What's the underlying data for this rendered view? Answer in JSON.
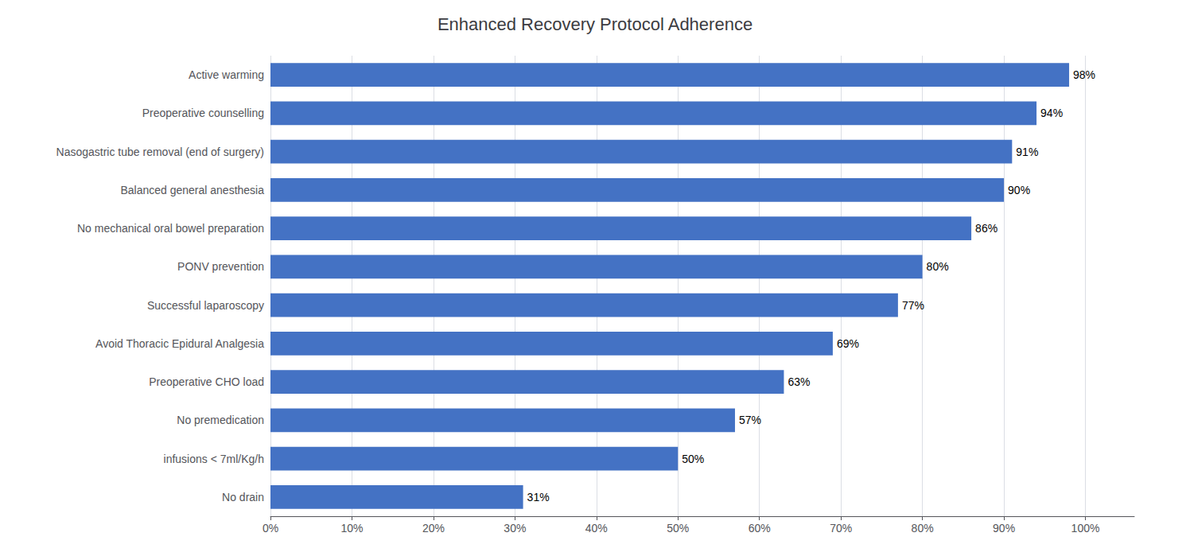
{
  "chart_data": {
    "type": "bar",
    "orientation": "horizontal",
    "title": "Enhanced Recovery Protocol Adherence",
    "categories": [
      "No drain",
      "infusions < 7ml/Kg/h",
      "No premedication",
      "Preoperative CHO load",
      "Avoid Thoracic Epidural Analgesia",
      "Successful laparoscopy",
      "PONV prevention",
      "No mechanical oral bowel preparation",
      "Balanced general anesthesia",
      "Nasogastric tube removal (end of surgery)",
      "Preoperative counselling",
      "Active warming"
    ],
    "values": [
      31,
      50,
      57,
      63,
      69,
      77,
      80,
      86,
      90,
      91,
      94,
      98
    ],
    "value_labels": [
      "31%",
      "50%",
      "57%",
      "63%",
      "69%",
      "77%",
      "80%",
      "86%",
      "90%",
      "91%",
      "94%",
      "98%"
    ],
    "color": "#4472C4",
    "xlim": [
      0,
      106
    ],
    "xticks": [
      {
        "value": 0,
        "label": "0%"
      },
      {
        "value": 10,
        "label": "10%"
      },
      {
        "value": 20,
        "label": "20%"
      },
      {
        "value": 30,
        "label": "30%"
      },
      {
        "value": 40,
        "label": "40%"
      },
      {
        "value": 50,
        "label": "50%"
      },
      {
        "value": 60,
        "label": "60%"
      },
      {
        "value": 70,
        "label": "70%"
      },
      {
        "value": 80,
        "label": "80%"
      },
      {
        "value": 90,
        "label": "90%"
      },
      {
        "value": 100,
        "label": "100%"
      }
    ],
    "grid": true,
    "data_labels": true
  }
}
